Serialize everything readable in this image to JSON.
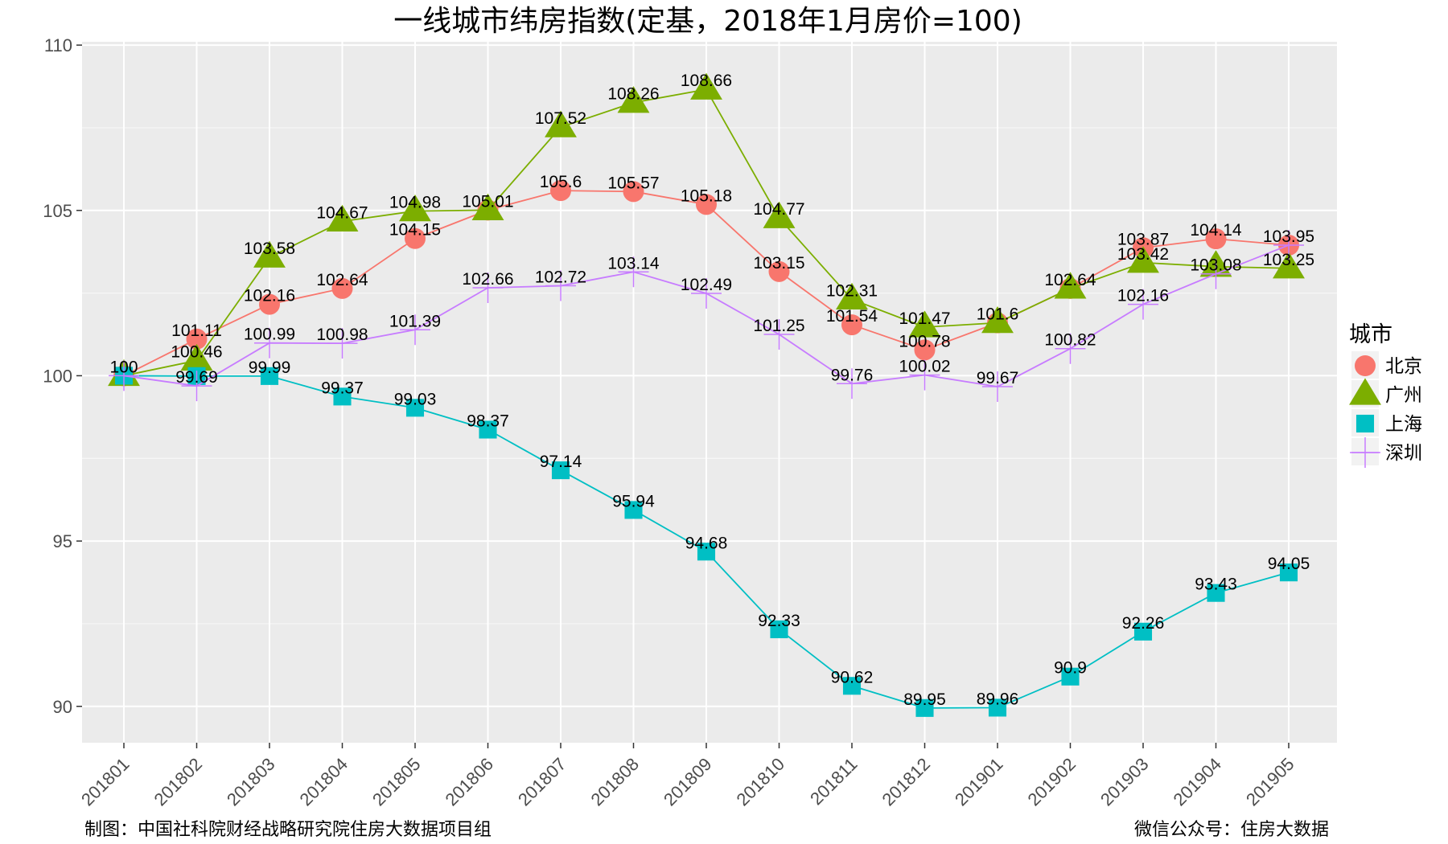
{
  "chart_data": {
    "type": "line",
    "title": "一线城市纬房指数(定基，2018年1月房价=100)",
    "xlabel": "",
    "ylabel": "",
    "categories": [
      "201801",
      "201802",
      "201803",
      "201804",
      "201805",
      "201806",
      "201807",
      "201808",
      "201809",
      "201810",
      "201811",
      "201812",
      "201901",
      "201902",
      "201903",
      "201904",
      "201905"
    ],
    "y_ticks": [
      "90",
      "95",
      "100",
      "105",
      "110"
    ],
    "ylim": [
      88.9,
      110.1
    ],
    "grid": true,
    "legend": {
      "title": "城市",
      "position": "right"
    },
    "series": [
      {
        "name": "北京",
        "color": "#F8766D",
        "marker": "circle",
        "values": [
          100,
          101.11,
          102.16,
          102.64,
          104.15,
          105.01,
          105.6,
          105.57,
          105.18,
          103.15,
          101.54,
          100.78,
          101.6,
          102.64,
          103.87,
          104.14,
          103.95
        ],
        "labels": [
          "100",
          "101.11",
          "102.16",
          "102.64",
          "104.15",
          "105.01",
          "105.6",
          "105.57",
          "105.18",
          "103.15",
          "101.54",
          "100.78",
          "101.6",
          "102.64",
          "103.87",
          "104.14",
          "103.95"
        ]
      },
      {
        "name": "广州",
        "color": "#7CAE00",
        "marker": "triangle",
        "values": [
          100,
          100.46,
          103.58,
          104.67,
          104.98,
          105.01,
          107.52,
          108.26,
          108.66,
          104.77,
          102.31,
          101.47,
          101.6,
          102.64,
          103.42,
          103.3,
          103.25
        ],
        "labels": [
          "",
          "100.46",
          "103.58",
          "104.67",
          "104.98",
          "",
          "107.52",
          "108.26",
          "108.66",
          "104.77",
          "102.31",
          "101.47",
          "",
          "",
          "103.42",
          "",
          "103.25"
        ]
      },
      {
        "name": "上海",
        "color": "#00BFC4",
        "marker": "square",
        "values": [
          100,
          99.99,
          99.99,
          99.37,
          99.03,
          98.37,
          97.14,
          95.94,
          94.68,
          92.33,
          90.62,
          89.95,
          89.96,
          90.9,
          92.26,
          93.43,
          94.05
        ],
        "labels": [
          "",
          "",
          "99.99",
          "99.37",
          "99.03",
          "98.37",
          "97.14",
          "95.94",
          "94.68",
          "92.33",
          "90.62",
          "89.95",
          "89.96",
          "90.9",
          "92.26",
          "93.43",
          "94.05"
        ]
      },
      {
        "name": "深圳",
        "color": "#C77CFF",
        "marker": "plus",
        "values": [
          100,
          99.69,
          100.99,
          100.98,
          101.39,
          102.66,
          102.72,
          103.14,
          102.49,
          101.25,
          99.76,
          100.02,
          99.67,
          100.82,
          102.16,
          103.08,
          103.95
        ],
        "labels": [
          "",
          "99.69",
          "100.99",
          "100.98",
          "101.39",
          "102.66",
          "102.72",
          "103.14",
          "102.49",
          "101.25",
          "99.76",
          "100.02",
          "99.67",
          "100.82",
          "102.16",
          "103.08",
          ""
        ]
      }
    ]
  },
  "caption_left": "制图：中国社科院财经战略研究院住房大数据项目组",
  "caption_right": "微信公众号：住房大数据"
}
